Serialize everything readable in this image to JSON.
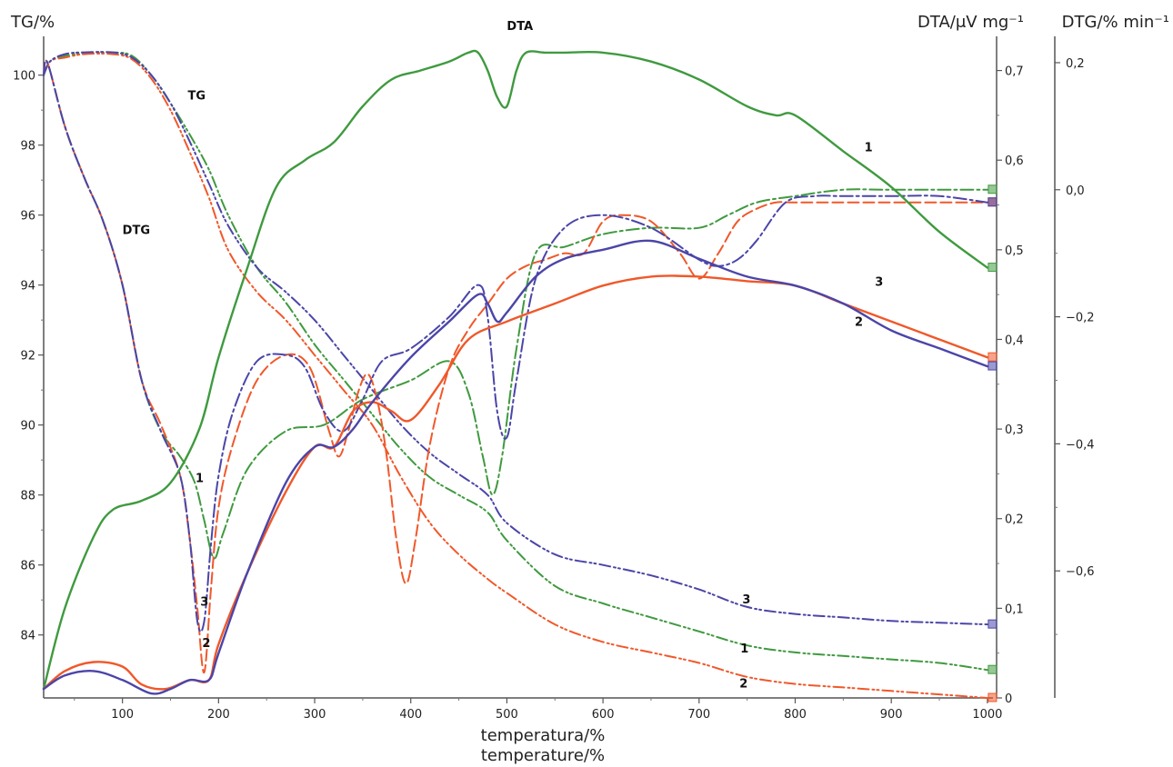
{
  "chart_data": {
    "type": "line",
    "title": "",
    "xlabel_line1": "temperatura/%",
    "xlabel_line2": "temperature/%",
    "ylabel_tg": "TG/%",
    "ylabel_dta": "DTA/μV mg⁻¹",
    "ylabel_dtg": "DTG/% min⁻¹",
    "grid": false,
    "xlim": [
      18,
      1002
    ],
    "x_ticks": [
      100,
      200,
      300,
      400,
      500,
      600,
      700,
      800,
      900,
      1000
    ],
    "tg_axis": {
      "ylim": [
        82.2,
        100.9
      ],
      "ticks": [
        84,
        86,
        88,
        90,
        92,
        94,
        96,
        98,
        100
      ],
      "labels": [
        "84",
        "86",
        "88",
        "90",
        "92",
        "94",
        "96",
        "98",
        "100"
      ]
    },
    "dta_axis": {
      "ylim": [
        0.0,
        0.73
      ],
      "ticks": [
        0,
        0.1,
        0.2,
        0.3,
        0.4,
        0.5,
        0.6,
        0.7
      ],
      "labels": [
        "0",
        "0,1",
        "0,2",
        "0,3",
        "0,4",
        "0,5",
        "0,6",
        "0,7"
      ]
    },
    "dtg_axis": {
      "ylim": [
        -0.8,
        0.23
      ],
      "ticks": [
        0.2,
        0.0,
        -0.2,
        -0.4,
        -0.6
      ],
      "labels": [
        "0,2",
        "0,0",
        "−0,2",
        "−0,4",
        "−0,6"
      ]
    },
    "colors": {
      "sample1": "#3f9a3f",
      "sample2": "#f0582a",
      "sample3": "#4b45a8"
    },
    "curve_labels": {
      "tg": "TG",
      "dtg": "DTG",
      "dta": "DTA",
      "s1": "1",
      "s2": "2",
      "s3": "3"
    },
    "series": [
      {
        "sample": "1",
        "kind": "TG",
        "axis": "tg",
        "style": "dashdotdot",
        "x": [
          18,
          25,
          40,
          60,
          90,
          110,
          130,
          150,
          170,
          190,
          210,
          240,
          270,
          300,
          330,
          360,
          390,
          420,
          450,
          480,
          500,
          550,
          600,
          650,
          700,
          750,
          800,
          850,
          900,
          950,
          1000
        ],
        "y": [
          100,
          100.4,
          100.55,
          100.62,
          100.65,
          100.55,
          100.0,
          99.2,
          98.3,
          97.3,
          96.0,
          94.5,
          93.5,
          92.3,
          91.3,
          90.3,
          89.3,
          88.5,
          88.0,
          87.5,
          86.7,
          85.4,
          84.9,
          84.5,
          84.1,
          83.7,
          83.5,
          83.4,
          83.3,
          83.2,
          83.0
        ]
      },
      {
        "sample": "2",
        "kind": "TG",
        "axis": "tg",
        "style": "dashdotdot",
        "x": [
          18,
          25,
          40,
          60,
          90,
          110,
          130,
          150,
          170,
          190,
          210,
          240,
          270,
          300,
          330,
          360,
          390,
          420,
          450,
          480,
          500,
          550,
          600,
          650,
          700,
          750,
          800,
          850,
          900,
          950,
          1000
        ],
        "y": [
          100,
          100.4,
          100.5,
          100.6,
          100.6,
          100.45,
          99.9,
          99.0,
          97.8,
          96.5,
          95.0,
          93.8,
          93.0,
          92.0,
          91.0,
          90.0,
          88.5,
          87.2,
          86.3,
          85.6,
          85.2,
          84.3,
          83.8,
          83.5,
          83.2,
          82.8,
          82.6,
          82.5,
          82.4,
          82.3,
          82.2
        ]
      },
      {
        "sample": "3",
        "kind": "TG",
        "axis": "tg",
        "style": "dashdotdot",
        "x": [
          18,
          25,
          40,
          60,
          90,
          110,
          130,
          150,
          170,
          190,
          210,
          240,
          270,
          300,
          330,
          360,
          390,
          420,
          450,
          480,
          500,
          550,
          600,
          650,
          700,
          750,
          800,
          850,
          900,
          950,
          1000
        ],
        "y": [
          100,
          100.4,
          100.6,
          100.65,
          100.65,
          100.5,
          100.0,
          99.2,
          98.1,
          96.9,
          95.7,
          94.5,
          93.8,
          93.0,
          92.0,
          91.0,
          90.0,
          89.2,
          88.6,
          88.0,
          87.2,
          86.3,
          86.0,
          85.7,
          85.3,
          84.8,
          84.6,
          84.5,
          84.4,
          84.35,
          84.3
        ]
      },
      {
        "sample": "1",
        "kind": "DTG",
        "axis": "dtg",
        "style": "dashdot",
        "x": [
          18,
          22,
          40,
          60,
          80,
          100,
          120,
          140,
          160,
          175,
          185,
          195,
          205,
          230,
          270,
          310,
          350,
          400,
          440,
          460,
          475,
          485,
          495,
          510,
          530,
          560,
          600,
          650,
          700,
          730,
          760,
          800,
          850,
          900,
          1000
        ],
        "y": [
          0.18,
          0.2,
          0.1,
          0.02,
          -0.05,
          -0.15,
          -0.3,
          -0.38,
          -0.42,
          -0.46,
          -0.52,
          -0.58,
          -0.54,
          -0.44,
          -0.38,
          -0.37,
          -0.33,
          -0.3,
          -0.27,
          -0.32,
          -0.42,
          -0.48,
          -0.42,
          -0.25,
          -0.1,
          -0.09,
          -0.07,
          -0.06,
          -0.06,
          -0.04,
          -0.02,
          -0.01,
          0.0,
          0.0,
          0.0
        ]
      },
      {
        "sample": "2",
        "kind": "DTG",
        "axis": "dtg",
        "style": "dashdash",
        "x": [
          18,
          22,
          40,
          60,
          80,
          100,
          120,
          140,
          160,
          170,
          178,
          185,
          192,
          200,
          215,
          240,
          270,
          295,
          315,
          325,
          335,
          345,
          355,
          365,
          375,
          385,
          395,
          405,
          420,
          440,
          460,
          480,
          500,
          520,
          540,
          560,
          580,
          600,
          620,
          650,
          680,
          700,
          720,
          740,
          760,
          780,
          800,
          850,
          900,
          950,
          1000
        ],
        "y": [
          0.18,
          0.2,
          0.1,
          0.02,
          -0.05,
          -0.15,
          -0.3,
          -0.37,
          -0.45,
          -0.55,
          -0.66,
          -0.76,
          -0.63,
          -0.5,
          -0.4,
          -0.3,
          -0.26,
          -0.28,
          -0.38,
          -0.42,
          -0.38,
          -0.32,
          -0.29,
          -0.33,
          -0.42,
          -0.55,
          -0.62,
          -0.55,
          -0.4,
          -0.28,
          -0.22,
          -0.18,
          -0.14,
          -0.12,
          -0.11,
          -0.1,
          -0.1,
          -0.05,
          -0.04,
          -0.05,
          -0.1,
          -0.14,
          -0.1,
          -0.05,
          -0.03,
          -0.02,
          -0.02,
          -0.02,
          -0.02,
          -0.02,
          -0.02
        ]
      },
      {
        "sample": "3",
        "kind": "DTG",
        "axis": "dtg",
        "style": "dashdot",
        "x": [
          18,
          22,
          40,
          60,
          80,
          100,
          120,
          140,
          160,
          170,
          178,
          185,
          192,
          200,
          215,
          240,
          270,
          290,
          310,
          330,
          350,
          370,
          400,
          440,
          470,
          480,
          490,
          500,
          510,
          530,
          560,
          600,
          650,
          700,
          720,
          740,
          760,
          790,
          820,
          850,
          900,
          950,
          1000
        ],
        "y": [
          0.18,
          0.2,
          0.1,
          0.02,
          -0.05,
          -0.15,
          -0.3,
          -0.38,
          -0.45,
          -0.55,
          -0.68,
          -0.68,
          -0.56,
          -0.45,
          -0.35,
          -0.27,
          -0.26,
          -0.28,
          -0.35,
          -0.38,
          -0.33,
          -0.27,
          -0.25,
          -0.2,
          -0.15,
          -0.2,
          -0.35,
          -0.39,
          -0.3,
          -0.14,
          -0.06,
          -0.04,
          -0.06,
          -0.11,
          -0.12,
          -0.11,
          -0.08,
          -0.02,
          -0.01,
          -0.01,
          -0.01,
          -0.01,
          -0.02
        ]
      },
      {
        "sample": "1",
        "kind": "DTA",
        "axis": "dta",
        "style": "solid",
        "x": [
          18,
          40,
          70,
          90,
          120,
          150,
          180,
          200,
          230,
          260,
          290,
          320,
          350,
          380,
          410,
          440,
          460,
          470,
          480,
          490,
          500,
          510,
          520,
          540,
          560,
          600,
          650,
          700,
          750,
          780,
          800,
          850,
          900,
          950,
          1000
        ],
        "y": [
          0.01,
          0.1,
          0.18,
          0.21,
          0.22,
          0.24,
          0.3,
          0.38,
          0.48,
          0.57,
          0.6,
          0.62,
          0.66,
          0.69,
          0.7,
          0.71,
          0.72,
          0.72,
          0.7,
          0.67,
          0.66,
          0.7,
          0.72,
          0.72,
          0.72,
          0.72,
          0.71,
          0.69,
          0.66,
          0.65,
          0.65,
          0.61,
          0.57,
          0.52,
          0.48
        ]
      },
      {
        "sample": "2",
        "kind": "DTA",
        "axis": "dta",
        "style": "solid",
        "x": [
          18,
          40,
          70,
          100,
          120,
          145,
          170,
          190,
          200,
          230,
          270,
          300,
          320,
          340,
          360,
          380,
          400,
          430,
          460,
          500,
          550,
          600,
          650,
          700,
          750,
          800,
          850,
          900,
          950,
          1000
        ],
        "y": [
          0.01,
          0.03,
          0.04,
          0.035,
          0.015,
          0.01,
          0.02,
          0.02,
          0.06,
          0.14,
          0.23,
          0.28,
          0.28,
          0.32,
          0.33,
          0.32,
          0.31,
          0.35,
          0.4,
          0.42,
          0.44,
          0.46,
          0.47,
          0.47,
          0.465,
          0.46,
          0.44,
          0.42,
          0.4,
          0.38
        ]
      },
      {
        "sample": "3",
        "kind": "DTA",
        "axis": "dta",
        "style": "solid",
        "x": [
          18,
          40,
          70,
          100,
          130,
          150,
          170,
          190,
          200,
          230,
          270,
          300,
          320,
          340,
          360,
          400,
          440,
          470,
          480,
          490,
          500,
          530,
          560,
          600,
          650,
          700,
          750,
          800,
          850,
          900,
          950,
          1000
        ],
        "y": [
          0.01,
          0.025,
          0.03,
          0.02,
          0.005,
          0.01,
          0.02,
          0.02,
          0.05,
          0.14,
          0.24,
          0.28,
          0.28,
          0.3,
          0.33,
          0.38,
          0.42,
          0.45,
          0.44,
          0.42,
          0.43,
          0.47,
          0.49,
          0.5,
          0.51,
          0.49,
          0.47,
          0.46,
          0.44,
          0.41,
          0.39,
          0.37
        ]
      }
    ]
  }
}
